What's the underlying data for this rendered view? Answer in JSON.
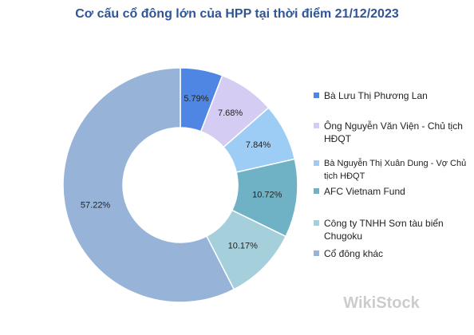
{
  "chart_data": {
    "type": "donut",
    "title": "Cơ cấu cổ đông lớn của HPP tại thời điểm 21/12/2023",
    "categories": [
      "Bà Lưu Thị Phương Lan",
      "Ông Nguyễn Văn Viện - Chủ tịch HĐQT",
      "Bà Nguyễn Thị Xuân Dung - Vợ Chủ tịch HĐQT",
      "AFC Vietnam Fund",
      "Công ty TNHH Sơn tàu biển Chugoku",
      "Cổ đông khác"
    ],
    "values": [
      5.79,
      7.68,
      7.84,
      10.72,
      10.17,
      57.22
    ],
    "value_labels": [
      "5.79%",
      "7.68%",
      "7.84%",
      "10.72%",
      "10.17%",
      "57.22%"
    ],
    "colors": [
      "#4f86e3",
      "#d4ccf2",
      "#9dccf5",
      "#6fb2c6",
      "#a5d0db",
      "#97b4d8"
    ],
    "legend": "right"
  },
  "watermark": "WikiStock"
}
